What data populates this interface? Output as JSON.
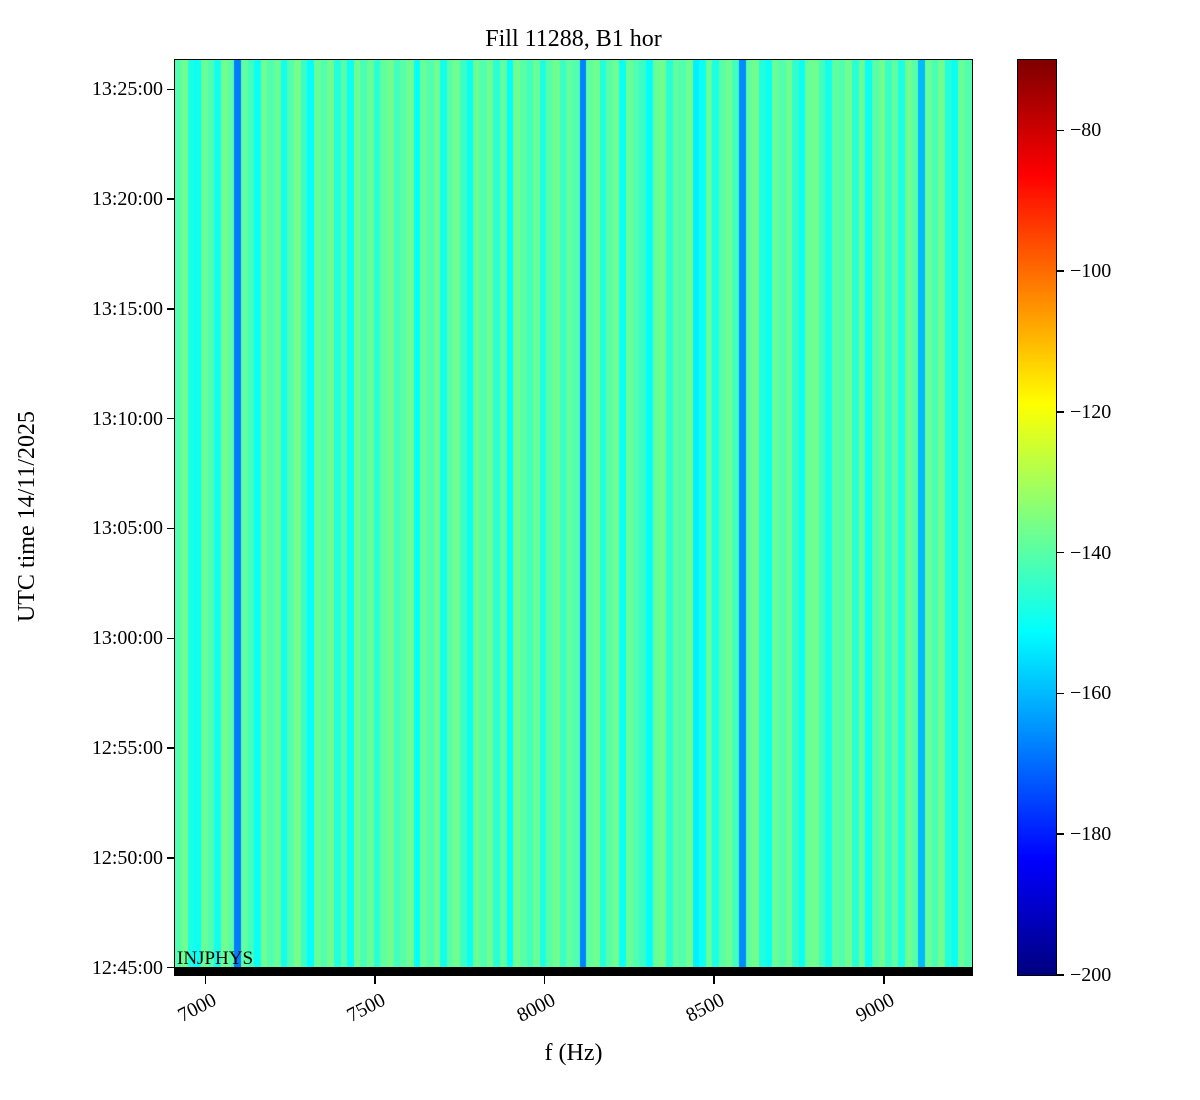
{
  "chart_data": {
    "type": "heatmap",
    "title": "Fill 11288, B1 hor",
    "xlabel": "f (Hz)",
    "ylabel": "UTC time 14/11/2025",
    "colormap": "jet",
    "vmin": -200,
    "vmax": -70,
    "value_units": "dB",
    "freq_range_hz": [
      6910,
      9260
    ],
    "time_range": [
      "12:44:40",
      "13:26:20"
    ],
    "x_ticks": [
      {
        "value": 7000,
        "label": "7000"
      },
      {
        "value": 7500,
        "label": "7500"
      },
      {
        "value": 8000,
        "label": "8000"
      },
      {
        "value": 8500,
        "label": "8500"
      },
      {
        "value": 9000,
        "label": "9000"
      }
    ],
    "y_ticks": [
      {
        "time": "13:25:00",
        "label": "13:25:00"
      },
      {
        "time": "13:20:00",
        "label": "13:20:00"
      },
      {
        "time": "13:15:00",
        "label": "13:15:00"
      },
      {
        "time": "13:10:00",
        "label": "13:10:00"
      },
      {
        "time": "13:05:00",
        "label": "13:05:00"
      },
      {
        "time": "13:00:00",
        "label": "13:00:00"
      },
      {
        "time": "12:55:00",
        "label": "12:55:00"
      },
      {
        "time": "12:50:00",
        "label": "12:50:00"
      },
      {
        "time": "12:45:00",
        "label": "12:45:00"
      }
    ],
    "colorbar_ticks": [
      {
        "value": -80,
        "label": "−80"
      },
      {
        "value": -100,
        "label": "−100"
      },
      {
        "value": -120,
        "label": "−120"
      },
      {
        "value": -140,
        "label": "−140"
      },
      {
        "value": -160,
        "label": "−160"
      },
      {
        "value": -180,
        "label": "−180"
      },
      {
        "value": -200,
        "label": "−200"
      }
    ],
    "annotation": {
      "text": "INJPHYS",
      "position": "bottom-left"
    },
    "beam_mode_bar": {
      "color": "#000000"
    },
    "columns_db": [
      -141,
      -137,
      -148,
      -150,
      -138,
      -141,
      -149,
      -137,
      -140,
      -168,
      -139,
      -143,
      -150,
      -137,
      -141,
      -138,
      -149,
      -141,
      -136,
      -144,
      -151,
      -138,
      -141,
      -137,
      -147,
      -140,
      -150,
      -137,
      -142,
      -138,
      -146,
      -139,
      -137,
      -143,
      -140,
      -137,
      -151,
      -138,
      -141,
      -137,
      -149,
      -140,
      -137,
      -144,
      -150,
      -138,
      -141,
      -137,
      -146,
      -139,
      -151,
      -137,
      -140,
      -143,
      -138,
      -148,
      -140,
      -137,
      -144,
      -139,
      -141,
      -167,
      -139,
      -137,
      -147,
      -140,
      -137,
      -150,
      -138,
      -141,
      -144,
      -151,
      -138,
      -137,
      -146,
      -139,
      -141,
      -137,
      -153,
      -150,
      -138,
      -148,
      -140,
      -137,
      -143,
      -166,
      -139,
      -137,
      -147,
      -150,
      -138,
      -141,
      -137,
      -145,
      -150,
      -138,
      -137,
      -143,
      -149,
      -139,
      -141,
      -137,
      -146,
      -138,
      -150,
      -140,
      -137,
      -144,
      -139,
      -148,
      -137,
      -140,
      -160,
      -138,
      -142,
      -137,
      -147,
      -150,
      -138,
      -141
    ]
  }
}
